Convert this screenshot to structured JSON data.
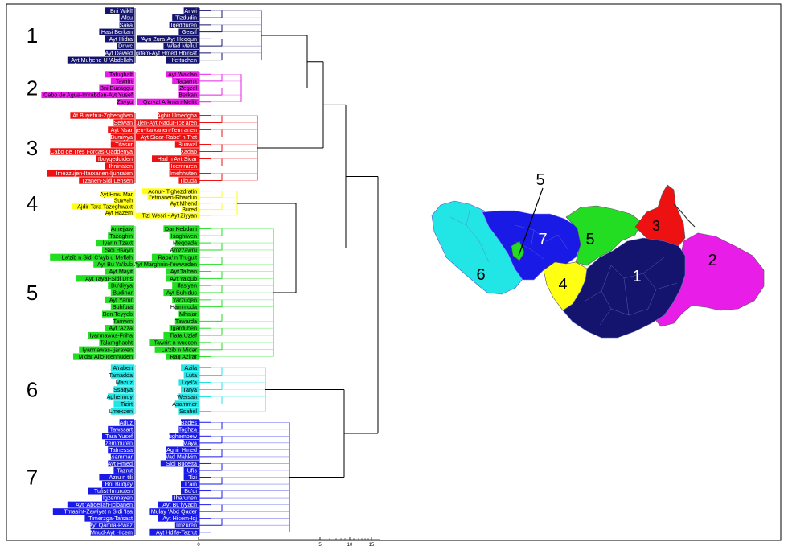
{
  "colors": {
    "1": "#14146e",
    "2": "#e81ee8",
    "3": "#ee1111",
    "4": "#ffff11",
    "5": "#22dd22",
    "6": "#22e6e6",
    "7": "#1a1ae6",
    "frame": "#000000",
    "tree": "#000000"
  },
  "axis": {
    "ticks": [
      "0",
      "5",
      "10",
      "15"
    ]
  },
  "groups": [
    {
      "id": "1",
      "label": "1",
      "left": [
        "Bni Wiklī",
        "Afsu",
        "Saka",
        "Hasi Berkan",
        "Ayt Ḥidra",
        "Driwc",
        "Ayt Dawed",
        "Ayt Muḥend U 'Abdellah"
      ],
      "right": [
        "Anwi",
        "Tizdudin",
        "Iqedduren",
        "Gersif",
        "'Ayn Zura-Ayt Heqqun",
        "Wlad Mellul",
        "Mezgitam-Ayt Ḥmed Hbircat",
        "Ifettuchen"
      ]
    },
    {
      "id": "2",
      "label": "2",
      "left": [
        "Tafughalt",
        "Tawrirt",
        "Bni Buzaggu",
        "Cabo de Agua-Imrabden-Ayt Yusef",
        "Zayyu"
      ],
      "right": [
        "Ayt Waklan",
        "Tagarnit",
        "Zegzel",
        "Berkan",
        "Qaryat Arkman-Melilt"
      ]
    },
    {
      "id": "3",
      "label": "3",
      "left": [
        "At Buyefrur-Zghenghen",
        "Selwan",
        "Ayt Nsar",
        "Bumiyya",
        "Tifasur",
        "Cabo de Tres Forcas-Qaddenya",
        "Ibuyqeddiden",
        "Ihninaten",
        "Imezzujen-Itarxanen-Ijuhraten",
        "Tzanen-Sidi Lehsen"
      ],
      "right": [
        "Aghir Umedgha",
        "Imezzujen-Ayt Nadur-Ice'aren",
        "Imezzujen-Itarxanen-I'emranen",
        "Ayt Sidar-Rabe' n Trat",
        "Buriwal",
        "Xadab",
        "Had n Ayt Sicar",
        "Icemraren",
        "Imehhuten",
        "Tibuda"
      ]
    },
    {
      "id": "4",
      "label": "4",
      "left": [
        "Ayt Hmu Mar",
        "Suyyah",
        "Ajdir-Tara Tazeghwaxt",
        "Ayt Hazem"
      ],
      "right": [
        "Acnur- Tighezdratin",
        "I'etmanen-Rbardun",
        "Ayt Mhend",
        "Bured",
        "Tizi Wesri - Ayt Ziyyan"
      ]
    },
    {
      "id": "5",
      "label": "5",
      "left": [
        "Amejjaw",
        "Tazaghin",
        "Iyar n Tzaxt",
        "Sidi Hsayn",
        "La'zib n Sidi C'ayb u Meflah",
        "Ayt Bu Ya'kub",
        "Ayt Mayit",
        "Ayt Tayar-Sidi Dris",
        "Bu'diyya",
        "Budinar",
        "Ayt Yarur",
        "Buhfura",
        "Ben Teyyeb",
        "Tamwin",
        "Ayt 'Azza",
        "Iyarmawas-Friha",
        "Talamghacht",
        "Iyarmawas-Ijaraven",
        "Midar Allo-Icennuden"
      ],
      "right": [
        "Dar Kebdani",
        "Isaghiwen",
        "Meqdada",
        "Amzzawru",
        "Raba' n Truguit",
        "Ayt Marghnin-I'ewwaden",
        "Ayt Ta'ban",
        "Ayt Ya'qub",
        "Ifasiyen",
        "Ayt Buhidus",
        "Yarzuqen",
        "Hammuda",
        "Mhajar",
        "Tawarda",
        "Igarduhen",
        "Tlata Uzlaf",
        "Tawrirt n wuccen",
        "La'zib n Midar",
        "Raq Azirar"
      ]
    },
    {
      "id": "6",
      "label": "6",
      "left": [
        "A'raben",
        "Tamadda",
        "Mazuz",
        "Ssaqya",
        "Aghennuy",
        "Tizirt",
        "Lmexzen"
      ],
      "right": [
        "Azila",
        "Luta",
        "Lqel'a",
        "Tarya",
        "Wersan",
        "Asammer",
        "Ssahel"
      ]
    },
    {
      "id": "7",
      "label": "7",
      "left": [
        "Aduz",
        "Tawssart",
        "Tara Yusef",
        "Izemmuren",
        "Tafnessa",
        "Asammar",
        "Ayt Hmed",
        "Tazrut",
        "Azru n tili",
        "Bni Budjay",
        "Tufist-Imuruten",
        "Igzennayen",
        "Ayt 'Abdellah-Icibanen",
        "Tmasint-Zawiyet n Sidi 'Isa",
        "Timerzga-Tafsast",
        "Ayt Qamra-Rwaz",
        "Mnud-Ayt Hicem"
      ],
      "right": [
        "Bades",
        "Taghza",
        "Bughembew",
        "Maya",
        "Aghir Hmed",
        "Wad Mahkim",
        "Sidi Bucetta",
        "Ufis",
        "Tizi",
        "L'ain",
        "Bu'di",
        "Iharunen",
        "Ayt Bu'lyyach",
        "Mulay 'Abd Qader",
        "Ayt Hicem-Idj",
        "Imzuren",
        "Ayt Hdifa-Tazrut"
      ]
    }
  ],
  "map_labels": [
    "1",
    "2",
    "3",
    "4",
    "5",
    "6",
    "7"
  ],
  "map_callout": "5"
}
